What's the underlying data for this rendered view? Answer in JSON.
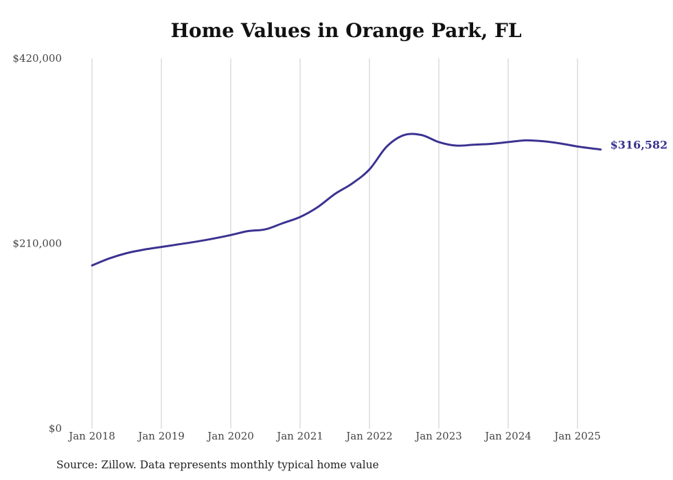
{
  "chart_data": {
    "type": "line",
    "title": "Home Values in Orange Park, FL",
    "source": "Source: Zillow. Data represents monthly typical home value",
    "ylim": [
      0,
      420000
    ],
    "yticks": [
      0,
      210000,
      420000
    ],
    "ytick_labels": [
      "$0",
      "$210,000",
      "$420,000"
    ],
    "xlim": [
      "2018-01",
      "2025-05"
    ],
    "xticks": [
      "2018-01",
      "2019-01",
      "2020-01",
      "2021-01",
      "2022-01",
      "2023-01",
      "2024-01",
      "2025-01"
    ],
    "xtick_labels": [
      "Jan 2018",
      "Jan 2019",
      "Jan 2020",
      "Jan 2021",
      "Jan 2022",
      "Jan 2023",
      "Jan 2024",
      "Jan 2025"
    ],
    "grid": "vertical",
    "line_color": "#3b3291",
    "end_label": "$316,582",
    "series": [
      {
        "x": [
          "2018-01",
          "2018-04",
          "2018-07",
          "2018-10",
          "2019-01",
          "2019-04",
          "2019-07",
          "2019-10",
          "2020-01",
          "2020-04",
          "2020-07",
          "2020-10",
          "2021-01",
          "2021-04",
          "2021-07",
          "2021-10",
          "2022-01",
          "2022-04",
          "2022-07",
          "2022-10",
          "2023-01",
          "2023-04",
          "2023-07",
          "2023-10",
          "2024-01",
          "2024-04",
          "2024-07",
          "2024-10",
          "2025-01",
          "2025-05"
        ],
        "values": [
          185000,
          193000,
          199000,
          203000,
          206000,
          209000,
          212000,
          215500,
          219500,
          224000,
          226000,
          233000,
          240000,
          251000,
          266000,
          278000,
          294000,
          320000,
          333000,
          333000,
          325000,
          321000,
          322000,
          323000,
          325000,
          327000,
          326000,
          323500,
          320000,
          316582
        ]
      }
    ]
  }
}
